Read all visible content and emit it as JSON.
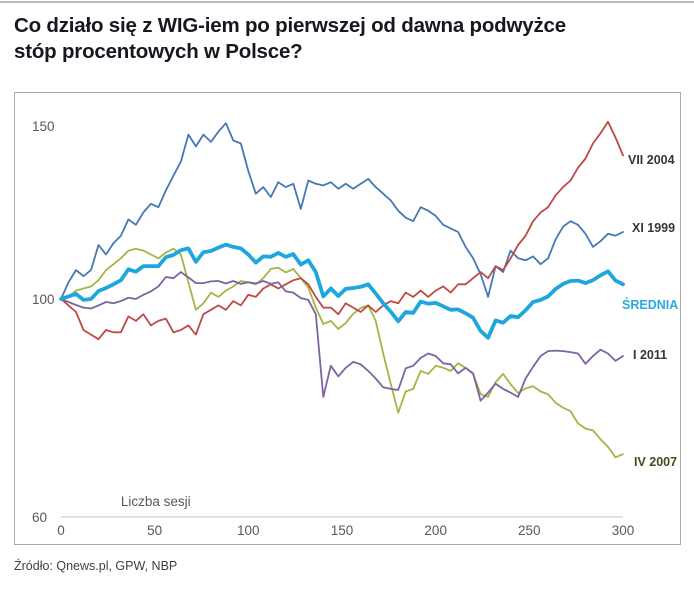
{
  "page": {
    "title_lines": [
      "Co działo się z WIG-iem po pierwszej od dawna podwyżce",
      "stóp procentowych w Polsce?"
    ],
    "source": "Źródło: Qnews.pl, GPW, NBP"
  },
  "colors": {
    "title": "#17171f",
    "top_rule": "#b9b9b9",
    "chart_border": "#a9a9a9",
    "axis_line": "#d8d8d8",
    "tick_text": "#595959",
    "source_text": "#3f3f3f"
  },
  "chart_data": {
    "type": "line",
    "title": "",
    "xlabel": "Liczba sesji",
    "ylabel": "",
    "x_ticks": [
      0,
      50,
      100,
      150,
      200,
      250,
      300
    ],
    "y_ticks": [
      150,
      100,
      60
    ],
    "xlim": [
      0,
      300
    ],
    "ylim": [
      60,
      155
    ],
    "y_scale": "log",
    "grid": false,
    "legend_position": "right-of-line-ends",
    "x": [
      0,
      4,
      8,
      12,
      16,
      20,
      24,
      28,
      32,
      36,
      40,
      44,
      48,
      52,
      56,
      60,
      64,
      68,
      72,
      76,
      80,
      84,
      88,
      92,
      96,
      100,
      104,
      108,
      112,
      116,
      120,
      124,
      128,
      132,
      136,
      140,
      144,
      148,
      152,
      156,
      160,
      164,
      168,
      172,
      176,
      180,
      184,
      188,
      192,
      196,
      200,
      204,
      208,
      212,
      216,
      220,
      224,
      228,
      232,
      236,
      240,
      244,
      248,
      252,
      256,
      260,
      264,
      268,
      272,
      276,
      280,
      284,
      288,
      292,
      296,
      300
    ],
    "series": [
      {
        "id": "iv-2007",
        "name": "IV 2007",
        "color": "#a6b345",
        "label_color": "#4a4a22",
        "width": 1.8,
        "values": [
          100,
          100.5,
          102,
          102.5,
          103,
          104.5,
          107,
          108.5,
          110,
          112,
          112.5,
          112,
          111,
          110,
          111.5,
          112.5,
          111,
          104,
          97.5,
          99,
          101.5,
          100.5,
          102,
          103,
          104.3,
          104,
          103.5,
          105,
          107.3,
          107.6,
          106.4,
          107.3,
          105,
          102.7,
          98,
          94.3,
          95,
          93.2,
          94.5,
          96.6,
          97.9,
          98.5,
          95,
          88,
          82,
          76.6,
          80.5,
          81,
          84.5,
          83.9,
          85.5,
          85.1,
          84.5,
          86,
          85.1,
          83.9,
          80,
          79.5,
          82.3,
          83.9,
          81.9,
          80.2,
          81.1,
          81.5,
          80.5,
          80,
          78.4,
          77.5,
          76.9,
          74.7,
          73.8,
          73.5,
          72,
          70.7,
          69,
          69.5
        ]
      },
      {
        "id": "xi-1999",
        "name": "XI 1999",
        "color": "#4579b3",
        "label_color": "#36363e",
        "width": 1.8,
        "values": [
          100,
          104,
          107,
          105.5,
          107,
          113.5,
          111,
          114,
          116,
          120.5,
          119,
          122.5,
          125,
          124,
          129,
          133.5,
          138,
          147,
          143,
          147,
          144.5,
          148,
          151,
          145,
          144,
          135,
          128,
          130,
          127,
          131.5,
          130,
          131,
          123.5,
          132,
          131,
          130.5,
          131.5,
          129.5,
          131,
          129.5,
          131,
          132.5,
          130,
          128,
          126,
          123,
          121,
          120,
          124,
          123,
          121.5,
          119,
          118,
          117,
          113,
          110,
          106,
          100.5,
          108,
          106.5,
          112,
          110,
          109.5,
          110.5,
          108.5,
          110,
          115,
          118.5,
          120,
          119,
          116.5,
          113,
          114.5,
          116.5,
          116,
          117
        ]
      },
      {
        "id": "vii-2004",
        "name": "VII 2004",
        "color": "#bf4944",
        "label_color": "#3c3434",
        "width": 1.8,
        "values": [
          100,
          98.5,
          97,
          93,
          92,
          91,
          93,
          92.5,
          92.5,
          96,
          95,
          96.5,
          94,
          95,
          95.5,
          92.5,
          93,
          94,
          92,
          96.5,
          97.5,
          98.5,
          97.5,
          99.5,
          98.5,
          101,
          100.5,
          102.5,
          103.5,
          102.5,
          103.5,
          104.5,
          105,
          103.5,
          100.5,
          98,
          98,
          96.5,
          99,
          98,
          97,
          98.5,
          97,
          98.5,
          99.5,
          99,
          101.5,
          100.5,
          102,
          100.5,
          102,
          103,
          101.5,
          103.5,
          103.5,
          105,
          106.5,
          105,
          108,
          107,
          110,
          113.5,
          116,
          120,
          122.5,
          124,
          127.5,
          130,
          132,
          136,
          139,
          144,
          147.5,
          151.5,
          146,
          140
        ]
      },
      {
        "id": "i-2011",
        "name": "I 2011",
        "color": "#7d63a0",
        "label_color": "#38333e",
        "width": 1.8,
        "values": [
          100,
          99.3,
          98.6,
          98,
          97.8,
          98.5,
          99.3,
          99,
          99.5,
          100.3,
          100,
          101,
          101.8,
          103,
          105.3,
          105,
          106.5,
          105.2,
          103.8,
          103.8,
          104.2,
          104.3,
          103.7,
          104.3,
          103.6,
          104,
          103.7,
          104.3,
          103.6,
          104,
          101.8,
          101.5,
          100.2,
          99.8,
          96.5,
          79.5,
          85.5,
          83.4,
          85.1,
          86.3,
          85.8,
          84.5,
          83,
          81.3,
          81,
          80.8,
          85,
          85.5,
          87.1,
          88,
          87.5,
          86,
          85.8,
          84,
          85.1,
          84,
          78.8,
          80.3,
          82,
          81,
          80.3,
          79.5,
          83,
          85.3,
          87.5,
          88.5,
          88.6,
          88.5,
          88.3,
          88,
          85.9,
          87.5,
          88.8,
          88,
          86.5,
          87.5
        ]
      },
      {
        "id": "srednia",
        "name": "ŚREDNIA",
        "color": "#1ea7dc",
        "label_color": "#29abe2",
        "width": 3.8,
        "values": [
          100,
          100.6,
          101.2,
          99.8,
          100,
          101.9,
          102.6,
          103.5,
          104.5,
          107.2,
          106.6,
          108,
          108,
          108,
          110.3,
          110.9,
          112.1,
          112.6,
          109.1,
          111.6,
          111.9,
          112.8,
          113.6,
          113,
          112.6,
          111,
          108.9,
          110.5,
          110.4,
          111.4,
          110.4,
          111.1,
          108.4,
          109.5,
          106.5,
          100.6,
          102.5,
          100.7,
          102.4,
          102.6,
          102.9,
          103.5,
          101.3,
          99,
          97.1,
          94.9,
          97,
          96.8,
          99.4,
          98.9,
          99.1,
          98.3,
          97.5,
          97.6,
          96.7,
          95.7,
          92.8,
          91.3,
          95.1,
          94.6,
          96.1,
          95.8,
          97.4,
          99.3,
          99.8,
          100.6,
          102.4,
          103.6,
          104.3,
          104.4,
          103.8,
          104.5,
          105.7,
          106.7,
          104.4,
          103.5
        ]
      }
    ]
  }
}
